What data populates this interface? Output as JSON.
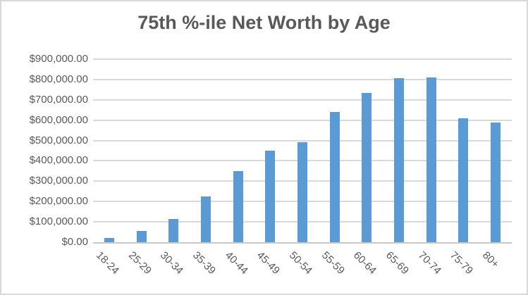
{
  "chart_data": {
    "type": "bar",
    "title": "75th %-ile Net Worth by Age",
    "categories": [
      "18-24",
      "25-29",
      "30-34",
      "35-39",
      "40-44",
      "45-49",
      "50-54",
      "55-59",
      "60-64",
      "65-69",
      "70-74",
      "75-79",
      "80+"
    ],
    "values": [
      20000,
      55000,
      115000,
      225000,
      350000,
      450000,
      490000,
      640000,
      735000,
      805000,
      810000,
      610000,
      590000
    ],
    "series": [
      {
        "name": "75th percentile net worth",
        "values": [
          20000,
          55000,
          115000,
          225000,
          350000,
          450000,
          490000,
          640000,
          735000,
          805000,
          810000,
          610000,
          590000
        ]
      }
    ],
    "xlabel": "",
    "ylabel": "",
    "ylim": [
      0,
      900000
    ],
    "y_tick_interval": 100000,
    "y_ticks": [
      {
        "value": 0,
        "label": "$0.00"
      },
      {
        "value": 100000,
        "label": "$100,000.00"
      },
      {
        "value": 200000,
        "label": "$200,000.00"
      },
      {
        "value": 300000,
        "label": "$300,000.00"
      },
      {
        "value": 400000,
        "label": "$400,000.00"
      },
      {
        "value": 500000,
        "label": "$500,000.00"
      },
      {
        "value": 600000,
        "label": "$600,000.00"
      },
      {
        "value": 700000,
        "label": "$700,000.00"
      },
      {
        "value": 800000,
        "label": "$800,000.00"
      },
      {
        "value": 900000,
        "label": "$900,000.00"
      }
    ],
    "grid": true,
    "legend": false,
    "colors": {
      "bar": "#5B9BD5",
      "gridline": "#D9D9D9",
      "axis_line": "#C9C9C9",
      "text": "#595959",
      "border": "#D9D9D9",
      "background": "#FFFFFF"
    }
  }
}
